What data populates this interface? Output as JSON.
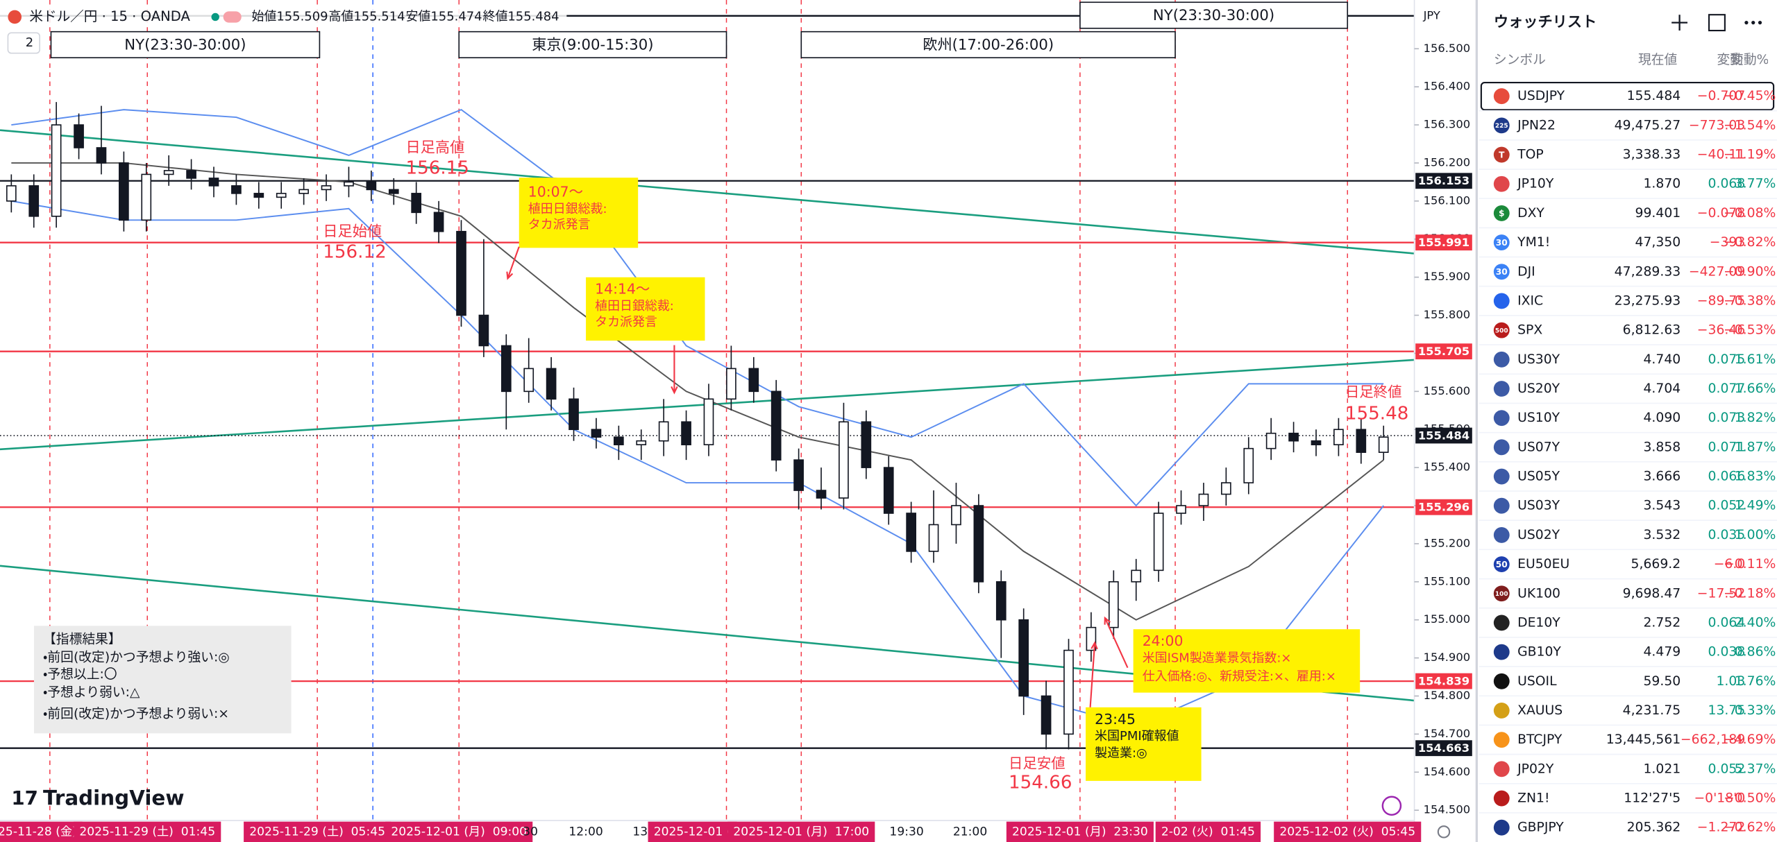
{
  "header": {
    "symbol": "米ドル／円 · 15 · OANDA",
    "ohlc": [
      "始値155.509",
      "高値155.514",
      "安値155.474",
      "終値155.484"
    ],
    "layers": "2",
    "currency": "JPY",
    "logo": "TradingView"
  },
  "sessions": [
    "NY(23:30-30:00)",
    "東京(9:00-15:30)",
    "欧州(17:00-26:00)",
    "NY(23:30-30:00)"
  ],
  "chart": {
    "price_axis": {
      "range": [
        154.473,
        156.628
      ],
      "ticks": [
        {
          "value": 154.5,
          "label": "154.500"
        },
        {
          "value": 154.6,
          "label": "154.600"
        },
        {
          "value": 154.7,
          "label": "154.700"
        },
        {
          "value": 154.8,
          "label": "154.800"
        },
        {
          "value": 154.9,
          "label": "154.900"
        },
        {
          "value": 155.0,
          "label": "155.000"
        },
        {
          "value": 155.1,
          "label": "155.100"
        },
        {
          "value": 155.2,
          "label": "155.200"
        },
        {
          "value": 155.3,
          "label": "155.300"
        },
        {
          "value": 155.4,
          "label": "155.400"
        },
        {
          "value": 155.5,
          "label": "155.500"
        },
        {
          "value": 155.6,
          "label": "155.600"
        },
        {
          "value": 155.7,
          "label": "155.700"
        },
        {
          "value": 155.8,
          "label": "155.800"
        },
        {
          "value": 155.9,
          "label": "155.900"
        },
        {
          "value": 156.0,
          "label": "156.000"
        },
        {
          "value": 156.1,
          "label": "156.100"
        },
        {
          "value": 156.2,
          "label": "156.200"
        },
        {
          "value": 156.3,
          "label": "156.300"
        },
        {
          "value": 156.4,
          "label": "156.400"
        },
        {
          "value": 156.5,
          "label": "156.500"
        }
      ]
    },
    "levels": [
      {
        "value": 156.153,
        "color": "#131722"
      },
      {
        "value": 155.991,
        "color": "#f23645"
      },
      {
        "value": 155.705,
        "color": "#f23645"
      },
      {
        "value": 155.484,
        "color": "#131722",
        "style": "dotted"
      },
      {
        "value": 155.296,
        "color": "#f23645"
      },
      {
        "value": 154.839,
        "color": "#f23645"
      },
      {
        "value": 154.663,
        "color": "#131722"
      }
    ],
    "candles": [
      [
        156.1,
        156.17,
        156.07,
        156.14
      ],
      [
        156.14,
        156.17,
        156.03,
        156.06
      ],
      [
        156.06,
        156.36,
        156.03,
        156.3
      ],
      [
        156.3,
        156.33,
        156.21,
        156.24
      ],
      [
        156.24,
        156.35,
        156.17,
        156.2
      ],
      [
        156.2,
        156.23,
        156.02,
        156.05
      ],
      [
        156.05,
        156.2,
        156.02,
        156.17
      ],
      [
        156.17,
        156.22,
        156.14,
        156.18
      ],
      [
        156.18,
        156.21,
        156.13,
        156.16
      ],
      [
        156.16,
        156.19,
        156.11,
        156.14
      ],
      [
        156.14,
        156.17,
        156.09,
        156.12
      ],
      [
        156.12,
        156.15,
        156.08,
        156.11
      ],
      [
        156.11,
        156.15,
        156.08,
        156.12
      ],
      [
        156.12,
        156.16,
        156.09,
        156.13
      ],
      [
        156.13,
        156.17,
        156.1,
        156.14
      ],
      [
        156.14,
        156.19,
        156.11,
        156.15
      ],
      [
        156.15,
        156.18,
        156.1,
        156.13
      ],
      [
        156.13,
        156.16,
        156.09,
        156.12
      ],
      [
        156.12,
        156.15,
        156.04,
        156.07
      ],
      [
        156.07,
        156.1,
        155.99,
        156.02
      ],
      [
        156.02,
        156.05,
        155.77,
        155.8
      ],
      [
        155.8,
        156.0,
        155.69,
        155.72
      ],
      [
        155.72,
        155.75,
        155.5,
        155.6
      ],
      [
        155.6,
        155.74,
        155.57,
        155.66
      ],
      [
        155.66,
        155.69,
        155.55,
        155.58
      ],
      [
        155.58,
        155.61,
        155.47,
        155.5
      ],
      [
        155.5,
        155.53,
        155.45,
        155.48
      ],
      [
        155.48,
        155.51,
        155.42,
        155.46
      ],
      [
        155.46,
        155.5,
        155.42,
        155.47
      ],
      [
        155.47,
        155.58,
        155.43,
        155.52
      ],
      [
        155.52,
        155.55,
        155.42,
        155.46
      ],
      [
        155.46,
        155.62,
        155.43,
        155.58
      ],
      [
        155.58,
        155.72,
        155.55,
        155.66
      ],
      [
        155.66,
        155.69,
        155.57,
        155.6
      ],
      [
        155.6,
        155.63,
        155.39,
        155.42
      ],
      [
        155.42,
        155.45,
        155.29,
        155.34
      ],
      [
        155.34,
        155.4,
        155.29,
        155.32
      ],
      [
        155.32,
        155.57,
        155.29,
        155.52
      ],
      [
        155.52,
        155.55,
        155.37,
        155.4
      ],
      [
        155.4,
        155.43,
        155.25,
        155.28
      ],
      [
        155.28,
        155.31,
        155.15,
        155.18
      ],
      [
        155.18,
        155.34,
        155.15,
        155.25
      ],
      [
        155.25,
        155.36,
        155.2,
        155.3
      ],
      [
        155.3,
        155.33,
        155.07,
        155.1
      ],
      [
        155.1,
        155.13,
        154.9,
        155.0
      ],
      [
        155.0,
        155.03,
        154.75,
        154.8
      ],
      [
        154.8,
        154.84,
        154.66,
        154.7
      ],
      [
        154.7,
        154.95,
        154.66,
        154.92
      ],
      [
        154.92,
        155.02,
        154.89,
        154.98
      ],
      [
        154.98,
        155.13,
        154.95,
        155.1
      ],
      [
        155.1,
        155.16,
        155.05,
        155.13
      ],
      [
        155.13,
        155.31,
        155.1,
        155.28
      ],
      [
        155.28,
        155.34,
        155.25,
        155.3
      ],
      [
        155.3,
        155.36,
        155.26,
        155.33
      ],
      [
        155.33,
        155.4,
        155.3,
        155.36
      ],
      [
        155.36,
        155.48,
        155.33,
        155.45
      ],
      [
        155.45,
        155.53,
        155.42,
        155.49
      ],
      [
        155.49,
        155.52,
        155.44,
        155.47
      ],
      [
        155.47,
        155.5,
        155.43,
        155.46
      ],
      [
        155.46,
        155.53,
        155.43,
        155.5
      ],
      [
        155.5,
        155.53,
        155.41,
        155.44
      ],
      [
        155.44,
        155.51,
        155.42,
        155.48
      ]
    ],
    "bands": {
      "index": [
        0,
        5,
        10,
        15,
        20,
        25,
        30,
        35,
        40,
        45,
        50,
        55,
        61
      ],
      "series": [
        {
          "color": "#5b8def",
          "values": [
            156.3,
            156.34,
            156.32,
            156.22,
            156.34,
            156.12,
            155.72,
            155.56,
            155.48,
            155.62,
            155.3,
            155.62,
            155.62
          ]
        },
        {
          "color": "#555555",
          "values": [
            156.2,
            156.2,
            156.17,
            156.15,
            156.06,
            155.82,
            155.6,
            155.48,
            155.42,
            155.18,
            155.0,
            155.14,
            155.42
          ]
        },
        {
          "color": "#5b8def",
          "values": [
            156.1,
            156.05,
            156.05,
            156.08,
            155.8,
            155.5,
            155.36,
            155.36,
            155.2,
            154.8,
            154.72,
            154.85,
            155.3
          ]
        }
      ]
    }
  },
  "annotations": [
    {
      "lines": [
        "日足高値",
        "156.15"
      ]
    },
    {
      "lines": [
        "日足始値",
        "156.12"
      ]
    },
    {
      "lines": [
        "10:07～",
        "植田日銀総裁:",
        "タカ派発言"
      ]
    },
    {
      "lines": [
        "14:14～",
        "植田日銀総裁:",
        "タカ派発言"
      ]
    },
    {
      "lines": [
        "日足終値",
        "155.48"
      ]
    },
    {
      "lines": [
        "日足安値",
        "154.66"
      ]
    },
    {
      "lines": [
        "24:00",
        "米国ISM製造業景気指数:×",
        "仕入価格:◎、新規受注:×、雇用:×"
      ]
    },
    {
      "lines": [
        "23:45",
        "米国PMI確報値",
        "製造業:◎"
      ]
    }
  ],
  "note": {
    "lines": [
      "【指標結果】",
      "・前回(改定)かつ予想より強い:◎",
      "・予想以上:〇",
      "・予想より弱い:△",
      "・前回(改定)かつ予想より弱い:×"
    ]
  },
  "time_axis": [
    {
      "label": "25-11-28 (金)",
      "highlight": true
    },
    {
      "label": "2025-11-29 (土)  01:45",
      "highlight": true
    },
    {
      "label": "2025-11-29 (土)  05:45",
      "highlight": true
    },
    {
      "label": "2025-12-01 (月)  09:00",
      "highlight": true
    },
    {
      "label": "30",
      "highlight": false
    },
    {
      "label": "12:00",
      "highlight": false
    },
    {
      "label": "13:3",
      "highlight": false
    },
    {
      "label": "2025-12-01 (",
      "highlight": true
    },
    {
      "label": "2025-12-01 (月)  17:00",
      "highlight": true
    },
    {
      "label": "19:30",
      "highlight": false
    },
    {
      "label": "21:00",
      "highlight": false
    },
    {
      "label": "2025-12-01 (月)  23:30",
      "highlight": true
    },
    {
      "label": "2-02 (火)  01:45",
      "highlight": true
    },
    {
      "label": "2025-12-02 (火)  05:45",
      "highlight": true
    }
  ],
  "watchlist": {
    "title": "ウォッチリスト",
    "columns": [
      "シンボル",
      "現在値",
      "変動",
      "変動%"
    ],
    "rows": [
      {
        "symbol": "USDJPY",
        "price": "155.484",
        "change": "−0.707",
        "pct": "−0.45%",
        "badge": "#e74c3c"
      },
      {
        "symbol": "JPN22",
        "price": "49,475.27",
        "change": "−773.03",
        "pct": "−1.54%",
        "badge": "#1e3a8a",
        "icon": "225"
      },
      {
        "symbol": "TOP",
        "price": "3,338.33",
        "change": "−40.11",
        "pct": "−1.19%",
        "badge": "#c0392b",
        "icon": "T"
      },
      {
        "symbol": "JP10Y",
        "price": "1.870",
        "change": "0.068",
        "pct": "3.77%",
        "badge": "#e0464a"
      },
      {
        "symbol": "DXY",
        "price": "99.401",
        "change": "−0.078",
        "pct": "−0.08%",
        "badge": "#1b8a3a",
        "icon": "$"
      },
      {
        "symbol": "YM1!",
        "price": "47,350",
        "change": "−393",
        "pct": "−0.82%",
        "badge": "#3b82f6",
        "icon": "30"
      },
      {
        "symbol": "DJI",
        "price": "47,289.33",
        "change": "−427.09",
        "pct": "−0.90%",
        "badge": "#3b82f6",
        "icon": "30"
      },
      {
        "symbol": "IXIC",
        "price": "23,275.93",
        "change": "−89.75",
        "pct": "−0.38%",
        "badge": "#2563eb"
      },
      {
        "symbol": "SPX",
        "price": "6,812.63",
        "change": "−36.46",
        "pct": "−0.53%",
        "badge": "#b91c1c",
        "icon": "500"
      },
      {
        "symbol": "US30Y",
        "price": "4.740",
        "change": "0.075",
        "pct": "1.61%",
        "badge": "#3c5aa6"
      },
      {
        "symbol": "US20Y",
        "price": "4.704",
        "change": "0.077",
        "pct": "1.66%",
        "badge": "#3c5aa6"
      },
      {
        "symbol": "US10Y",
        "price": "4.090",
        "change": "0.073",
        "pct": "1.82%",
        "badge": "#3c5aa6"
      },
      {
        "symbol": "US07Y",
        "price": "3.858",
        "change": "0.071",
        "pct": "1.87%",
        "badge": "#3c5aa6"
      },
      {
        "symbol": "US05Y",
        "price": "3.666",
        "change": "0.066",
        "pct": "1.83%",
        "badge": "#3c5aa6"
      },
      {
        "symbol": "US03Y",
        "price": "3.543",
        "change": "0.052",
        "pct": "1.49%",
        "badge": "#3c5aa6"
      },
      {
        "symbol": "US02Y",
        "price": "3.532",
        "change": "0.035",
        "pct": "1.00%",
        "badge": "#3c5aa6"
      },
      {
        "symbol": "EU50EU",
        "price": "5,669.2",
        "change": "−6.0",
        "pct": "−0.11%",
        "badge": "#1e40af",
        "icon": "50"
      },
      {
        "symbol": "UK100",
        "price": "9,698.47",
        "change": "−17.52",
        "pct": "−0.18%",
        "badge": "#7f1d1d",
        "icon": "100"
      },
      {
        "symbol": "DE10Y",
        "price": "2.752",
        "change": "0.064",
        "pct": "2.40%",
        "badge": "#222222"
      },
      {
        "symbol": "GB10Y",
        "price": "4.479",
        "change": "0.038",
        "pct": "0.86%",
        "badge": "#1e3a8a"
      },
      {
        "symbol": "USOIL",
        "price": "59.50",
        "change": "1.03",
        "pct": "1.76%",
        "badge": "#111111"
      },
      {
        "symbol": "XAUUS",
        "price": "4,231.75",
        "change": "13.75",
        "pct": "0.33%",
        "badge": "#d4a017"
      },
      {
        "symbol": "BTCJPY",
        "price": "13,445,561",
        "change": "−662,189",
        "pct": "−4.69%",
        "badge": "#f7931a"
      },
      {
        "symbol": "JP02Y",
        "price": "1.021",
        "change": "0.052",
        "pct": "5.37%",
        "badge": "#e0464a"
      },
      {
        "symbol": "ZN1!",
        "price": "112'27'5",
        "change": "−0'18'0",
        "pct": "−0.50%",
        "badge": "#b91c1c"
      },
      {
        "symbol": "GBPJPY",
        "price": "205.362",
        "change": "−1.272",
        "pct": "−0.62%",
        "badge": "#1e3a8a"
      }
    ]
  }
}
